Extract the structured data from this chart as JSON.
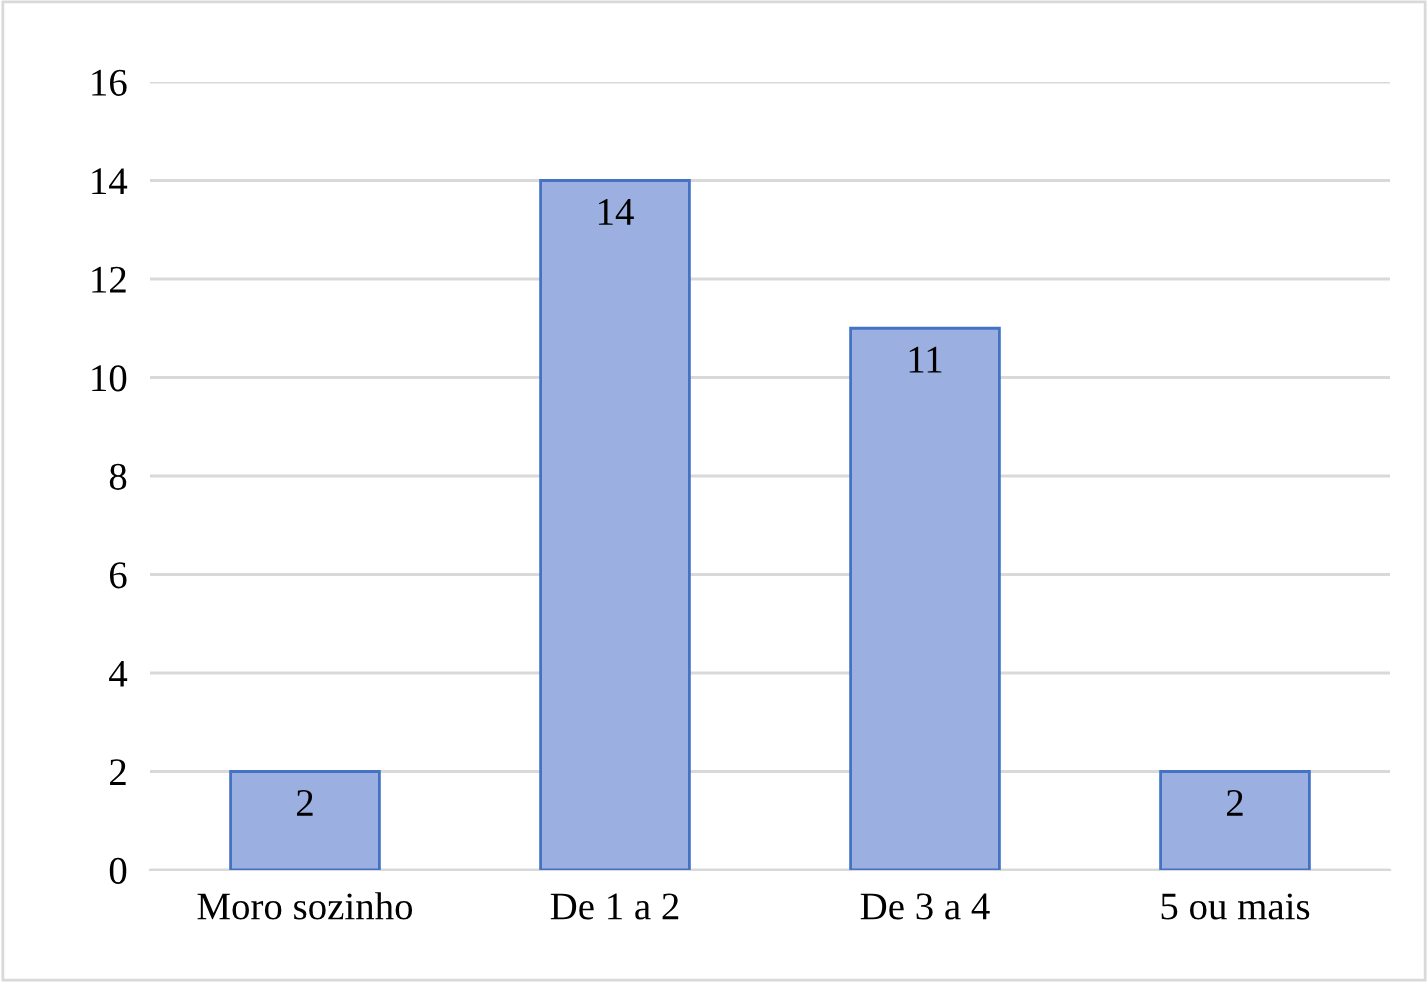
{
  "chart_data": {
    "type": "bar",
    "categories": [
      "Moro sozinho",
      "De 1 a 2",
      "De 3 a 4",
      "5 ou mais"
    ],
    "values": [
      2,
      14,
      11,
      2
    ],
    "color": "#9bb0e0",
    "ylim": [
      0,
      16
    ],
    "yticks": [
      0,
      2,
      4,
      6,
      8,
      10,
      12,
      14,
      16
    ],
    "grid": "y",
    "data_labels": true,
    "legend": false
  }
}
